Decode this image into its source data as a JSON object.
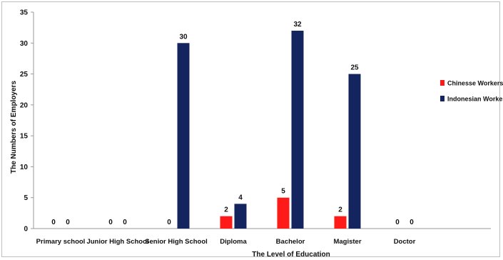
{
  "chart_data": {
    "type": "bar",
    "categories": [
      "Primary school",
      "Junior High School",
      "Senior High School",
      "Diploma",
      "Bachelor",
      "Magister",
      "Doctor"
    ],
    "series": [
      {
        "name": "Chinesse Workers",
        "color": "#ff1a1a",
        "values": [
          0,
          0,
          0,
          2,
          5,
          2,
          0
        ]
      },
      {
        "name": "Indonesian Workers",
        "color": "#14245e",
        "values": [
          0,
          0,
          30,
          4,
          32,
          25,
          0
        ]
      }
    ],
    "title": "",
    "xlabel": "The Level of Education",
    "ylabel": "The Numbers of Employers",
    "ylim": [
      0,
      35
    ],
    "yticks": [
      0,
      5,
      10,
      15,
      20,
      25,
      30,
      35
    ],
    "grid": false,
    "legend_position": "right"
  }
}
